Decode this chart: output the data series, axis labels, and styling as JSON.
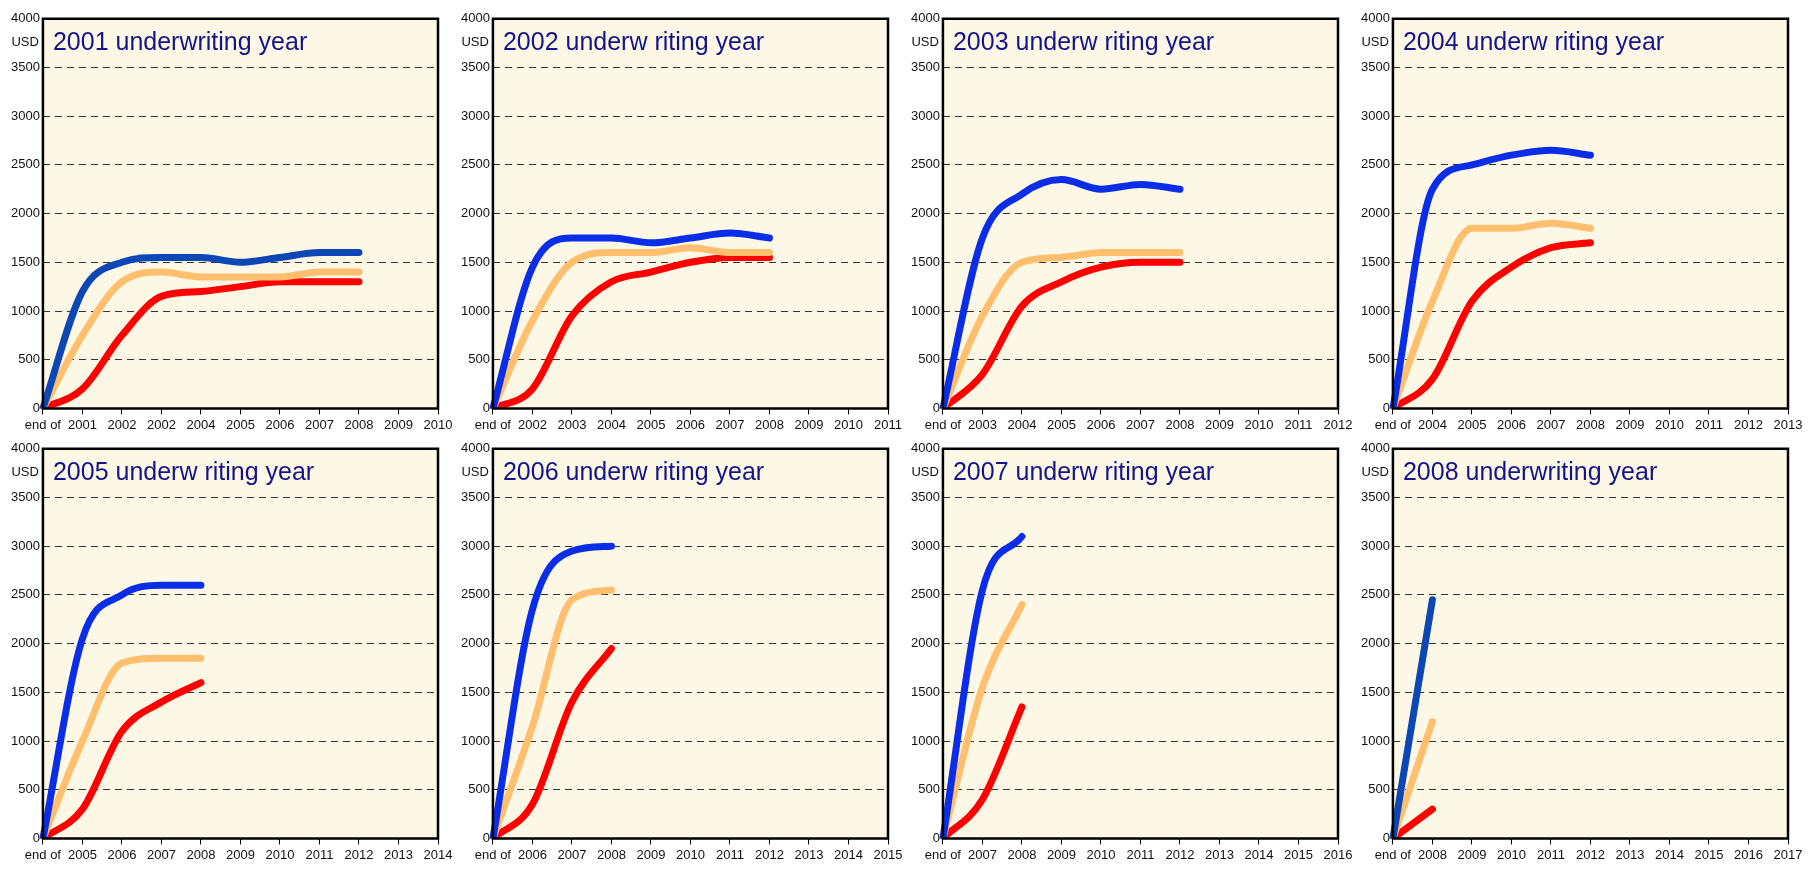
{
  "chart_data": [
    {
      "type": "line",
      "title": "2001 underwriting year",
      "ylabel": "USD",
      "categories": [
        "end of",
        "2001",
        "2002",
        "2002",
        "2004",
        "2005",
        "2006",
        "2007",
        "2008",
        "2009",
        "2010"
      ],
      "ylim": [
        0,
        4000
      ],
      "yticks": [
        0,
        500,
        1000,
        1500,
        2000,
        2500,
        3000,
        3500,
        4000
      ],
      "grid": "y",
      "series": [
        {
          "color": "#0d47b5",
          "values": [
            0,
            1200,
            1500,
            1550,
            1550,
            1500,
            1550,
            1600,
            1600,
            null,
            null
          ]
        },
        {
          "color": "#ffbf6e",
          "values": [
            0,
            750,
            1300,
            1400,
            1350,
            1350,
            1350,
            1400,
            1400,
            null,
            null
          ]
        },
        {
          "color": "#ff0000",
          "values": [
            0,
            200,
            750,
            1150,
            1200,
            1250,
            1300,
            1300,
            1300,
            null,
            null
          ]
        }
      ]
    },
    {
      "type": "line",
      "title": "2002 underw riting year",
      "ylabel": "USD",
      "categories": [
        "end of",
        "2002",
        "2003",
        "2004",
        "2005",
        "2006",
        "2007",
        "2008",
        "2009",
        "2010",
        "2011"
      ],
      "ylim": [
        0,
        4000
      ],
      "yticks": [
        0,
        500,
        1000,
        1500,
        2000,
        2500,
        3000,
        3500,
        4000
      ],
      "grid": "y",
      "series": [
        {
          "color": "#0a2ee8",
          "values": [
            0,
            1450,
            1750,
            1750,
            1700,
            1750,
            1800,
            1750,
            null,
            null,
            null
          ]
        },
        {
          "color": "#ffbf6e",
          "values": [
            0,
            900,
            1500,
            1600,
            1600,
            1650,
            1600,
            1600,
            null,
            null,
            null
          ]
        },
        {
          "color": "#ff0000",
          "values": [
            0,
            200,
            950,
            1300,
            1400,
            1500,
            1550,
            1550,
            null,
            null,
            null
          ]
        }
      ]
    },
    {
      "type": "line",
      "title": "2003 underw riting year",
      "ylabel": "USD",
      "categories": [
        "end of",
        "2003",
        "2004",
        "2005",
        "2006",
        "2007",
        "2008",
        "2009",
        "2010",
        "2011",
        "2012"
      ],
      "ylim": [
        0,
        4000
      ],
      "yticks": [
        0,
        500,
        1000,
        1500,
        2000,
        2500,
        3000,
        3500,
        4000
      ],
      "grid": "y",
      "series": [
        {
          "color": "#0a2ee8",
          "values": [
            0,
            1750,
            2200,
            2350,
            2250,
            2300,
            2250,
            null,
            null,
            null,
            null
          ]
        },
        {
          "color": "#ffbf6e",
          "values": [
            0,
            950,
            1500,
            1550,
            1600,
            1600,
            1600,
            null,
            null,
            null,
            null
          ]
        },
        {
          "color": "#ff0000",
          "values": [
            0,
            350,
            1050,
            1300,
            1450,
            1500,
            1500,
            null,
            null,
            null,
            null
          ]
        }
      ]
    },
    {
      "type": "line",
      "title": "2004 underw riting year",
      "ylabel": "USD",
      "categories": [
        "end of",
        "2004",
        "2005",
        "2006",
        "2007",
        "2008",
        "2009",
        "2010",
        "2011",
        "2012",
        "2013"
      ],
      "ylim": [
        0,
        4000
      ],
      "yticks": [
        0,
        500,
        1000,
        1500,
        2000,
        2500,
        3000,
        3500,
        4000
      ],
      "grid": "y",
      "series": [
        {
          "color": "#0a2ee8",
          "values": [
            0,
            2250,
            2500,
            2600,
            2650,
            2600,
            null,
            null,
            null,
            null,
            null
          ]
        },
        {
          "color": "#ffbf6e",
          "values": [
            0,
            1100,
            1850,
            1850,
            1900,
            1850,
            null,
            null,
            null,
            null,
            null
          ]
        },
        {
          "color": "#ff0000",
          "values": [
            0,
            300,
            1100,
            1450,
            1650,
            1700,
            null,
            null,
            null,
            null,
            null
          ]
        }
      ]
    },
    {
      "type": "line",
      "title": "2005 underw riting year",
      "ylabel": "USD",
      "categories": [
        "end of",
        "2005",
        "2006",
        "2007",
        "2008",
        "2009",
        "2010",
        "2011",
        "2012",
        "2013",
        "2014"
      ],
      "ylim": [
        0,
        4000
      ],
      "yticks": [
        0,
        500,
        1000,
        1500,
        2000,
        2500,
        3000,
        3500,
        4000
      ],
      "grid": "y",
      "series": [
        {
          "color": "#0a2ee8",
          "values": [
            0,
            2050,
            2500,
            2600,
            2600,
            null,
            null,
            null,
            null,
            null,
            null
          ]
        },
        {
          "color": "#ffbf6e",
          "values": [
            0,
            1000,
            1800,
            1850,
            1850,
            null,
            null,
            null,
            null,
            null,
            null
          ]
        },
        {
          "color": "#ff0000",
          "values": [
            0,
            300,
            1100,
            1400,
            1600,
            null,
            null,
            null,
            null,
            null,
            null
          ]
        }
      ]
    },
    {
      "type": "line",
      "title": "2006 underw riting year",
      "ylabel": "USD",
      "categories": [
        "end of",
        "2006",
        "2007",
        "2008",
        "2009",
        "2010",
        "2011",
        "2012",
        "2013",
        "2014",
        "2015"
      ],
      "ylim": [
        0,
        4000
      ],
      "yticks": [
        0,
        500,
        1000,
        1500,
        2000,
        2500,
        3000,
        3500,
        4000
      ],
      "grid": "y",
      "series": [
        {
          "color": "#0a2ee8",
          "values": [
            0,
            2350,
            2950,
            3000,
            null,
            null,
            null,
            null,
            null,
            null,
            null
          ]
        },
        {
          "color": "#ffbf6e",
          "values": [
            0,
            1150,
            2450,
            2550,
            null,
            null,
            null,
            null,
            null,
            null,
            null
          ]
        },
        {
          "color": "#ff0000",
          "values": [
            0,
            350,
            1400,
            1950,
            null,
            null,
            null,
            null,
            null,
            null,
            null
          ]
        }
      ]
    },
    {
      "type": "line",
      "title": "2007 underw riting year",
      "ylabel": "USD",
      "categories": [
        "end of",
        "2007",
        "2008",
        "2009",
        "2010",
        "2011",
        "2012",
        "2013",
        "2014",
        "2015",
        "2016"
      ],
      "ylim": [
        0,
        4000
      ],
      "yticks": [
        0,
        500,
        1000,
        1500,
        2000,
        2500,
        3000,
        3500,
        4000
      ],
      "grid": "y",
      "series": [
        {
          "color": "#0a2ee8",
          "values": [
            0,
            2550,
            3100,
            null,
            null,
            null,
            null,
            null,
            null,
            null,
            null
          ]
        },
        {
          "color": "#ffbf6e",
          "values": [
            0,
            1550,
            2400,
            null,
            null,
            null,
            null,
            null,
            null,
            null,
            null
          ]
        },
        {
          "color": "#ff0000",
          "values": [
            0,
            400,
            1350,
            null,
            null,
            null,
            null,
            null,
            null,
            null,
            null
          ]
        }
      ]
    },
    {
      "type": "line",
      "title": "2008 underwriting year",
      "ylabel": "USD",
      "categories": [
        "end of",
        "2008",
        "2009",
        "2010",
        "2011",
        "2012",
        "2013",
        "2014",
        "2015",
        "2016",
        "2017"
      ],
      "ylim": [
        0,
        4000
      ],
      "yticks": [
        0,
        500,
        1000,
        1500,
        2000,
        2500,
        3000,
        3500,
        4000
      ],
      "grid": "y",
      "series": [
        {
          "color": "#0d47b5",
          "values": [
            0,
            2450,
            null,
            null,
            null,
            null,
            null,
            null,
            null,
            null,
            null
          ]
        },
        {
          "color": "#ffbf6e",
          "values": [
            0,
            1200,
            null,
            null,
            null,
            null,
            null,
            null,
            null,
            null,
            null
          ]
        },
        {
          "color": "#ff0000",
          "values": [
            0,
            300,
            null,
            null,
            null,
            null,
            null,
            null,
            null,
            null,
            null
          ]
        }
      ]
    }
  ]
}
